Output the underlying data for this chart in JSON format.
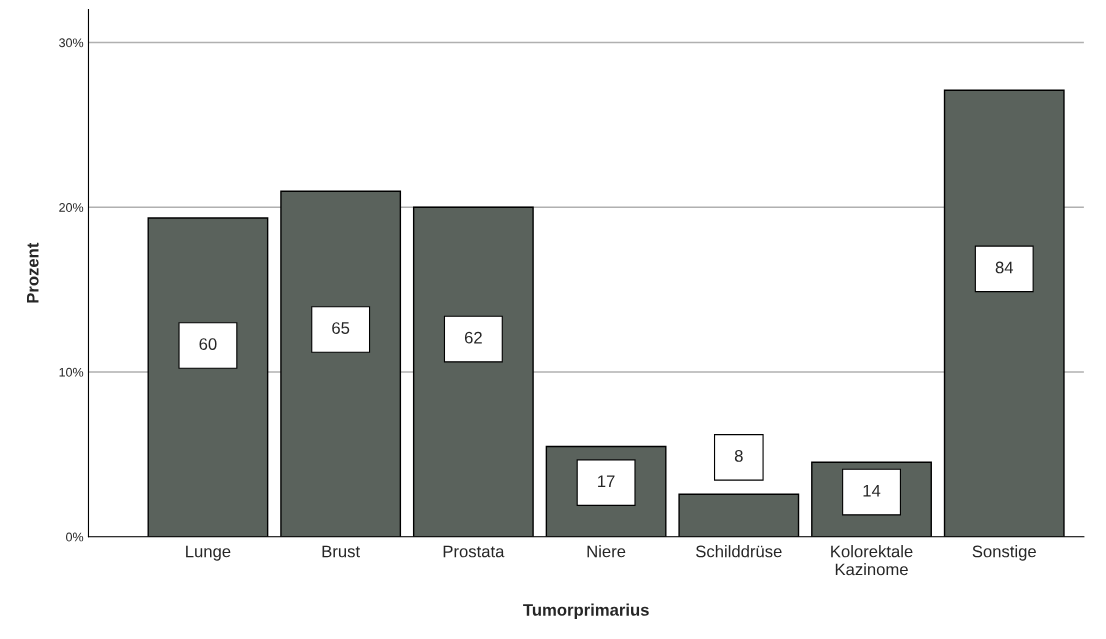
{
  "chart_data": {
    "type": "bar",
    "categories": [
      "Lunge",
      "Brust",
      "Prostata",
      "Niere",
      "Schilddrüse",
      "Kolorektale\nKazinome",
      "Sonstige"
    ],
    "values": [
      19.35,
      20.97,
      20.0,
      5.48,
      2.58,
      4.52,
      27.1
    ],
    "annotations": [
      "60",
      "65",
      "62",
      "17",
      "8",
      "14",
      "84"
    ],
    "color": "#5a625c",
    "xlabel": "Tumorprimarius",
    "ylabel": "Prozent",
    "ylim": [
      0,
      32
    ],
    "yticks": [
      {
        "value": 0,
        "label": "0%"
      },
      {
        "value": 10,
        "label": "10%"
      },
      {
        "value": 20,
        "label": "20%"
      },
      {
        "value": 30,
        "label": "30%"
      }
    ],
    "grid": "y"
  }
}
